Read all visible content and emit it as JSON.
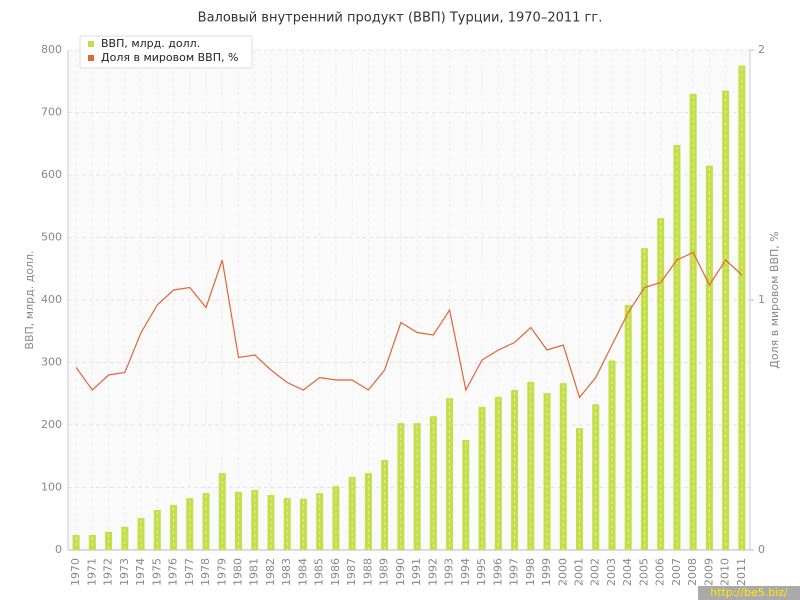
{
  "chart_data": {
    "type": "bar",
    "title": "Валовый внутренний продукт (ВВП) Турции, 1970–2011 гг.",
    "y_label": "ВВП, млрд. долл.",
    "y2_label": "Доля в мировом ВВП, %",
    "watermark": "http://be5.biz/",
    "categories": [
      "1970",
      "1971",
      "1972",
      "1973",
      "1974",
      "1975",
      "1976",
      "1977",
      "1978",
      "1979",
      "1980",
      "1981",
      "1982",
      "1983",
      "1984",
      "1985",
      "1986",
      "1987",
      "1988",
      "1989",
      "1990",
      "1991",
      "1992",
      "1993",
      "1994",
      "1995",
      "1996",
      "1997",
      "1998",
      "1999",
      "2000",
      "2001",
      "2002",
      "2003",
      "2004",
      "2005",
      "2006",
      "2007",
      "2008",
      "2009",
      "2010",
      "2011"
    ],
    "series": [
      {
        "name": "ВВП, млрд. долл.",
        "type": "bar",
        "color": "#c3de4a",
        "values": [
          24,
          24,
          29,
          37,
          51,
          64,
          72,
          83,
          91,
          123,
          93,
          96,
          88,
          83,
          82,
          91,
          102,
          117,
          123,
          144,
          203,
          203,
          214,
          243,
          176,
          229,
          245,
          256,
          269,
          251,
          267,
          195,
          233,
          303,
          392,
          483,
          531,
          648,
          730,
          615,
          735,
          775
        ]
      },
      {
        "name": "Доля в мировом ВВП, %",
        "type": "line",
        "axis": "y2",
        "color": "#e0653a",
        "values": [
          0.73,
          0.64,
          0.7,
          0.71,
          0.87,
          0.98,
          1.04,
          1.05,
          0.97,
          1.16,
          0.77,
          0.78,
          0.72,
          0.67,
          0.64,
          0.69,
          0.68,
          0.68,
          0.64,
          0.72,
          0.91,
          0.87,
          0.86,
          0.96,
          0.64,
          0.76,
          0.8,
          0.83,
          0.89,
          0.8,
          0.82,
          0.61,
          0.69,
          0.82,
          0.95,
          1.05,
          1.07,
          1.16,
          1.19,
          1.06,
          1.16,
          1.1
        ]
      }
    ],
    "ylim": [
      0,
      800
    ],
    "yticks": [
      0,
      100,
      200,
      300,
      400,
      500,
      600,
      700,
      800
    ],
    "y2lim": [
      0,
      2
    ],
    "y2ticks": [
      0,
      1,
      2
    ],
    "grid": true,
    "legend": "top-left"
  }
}
